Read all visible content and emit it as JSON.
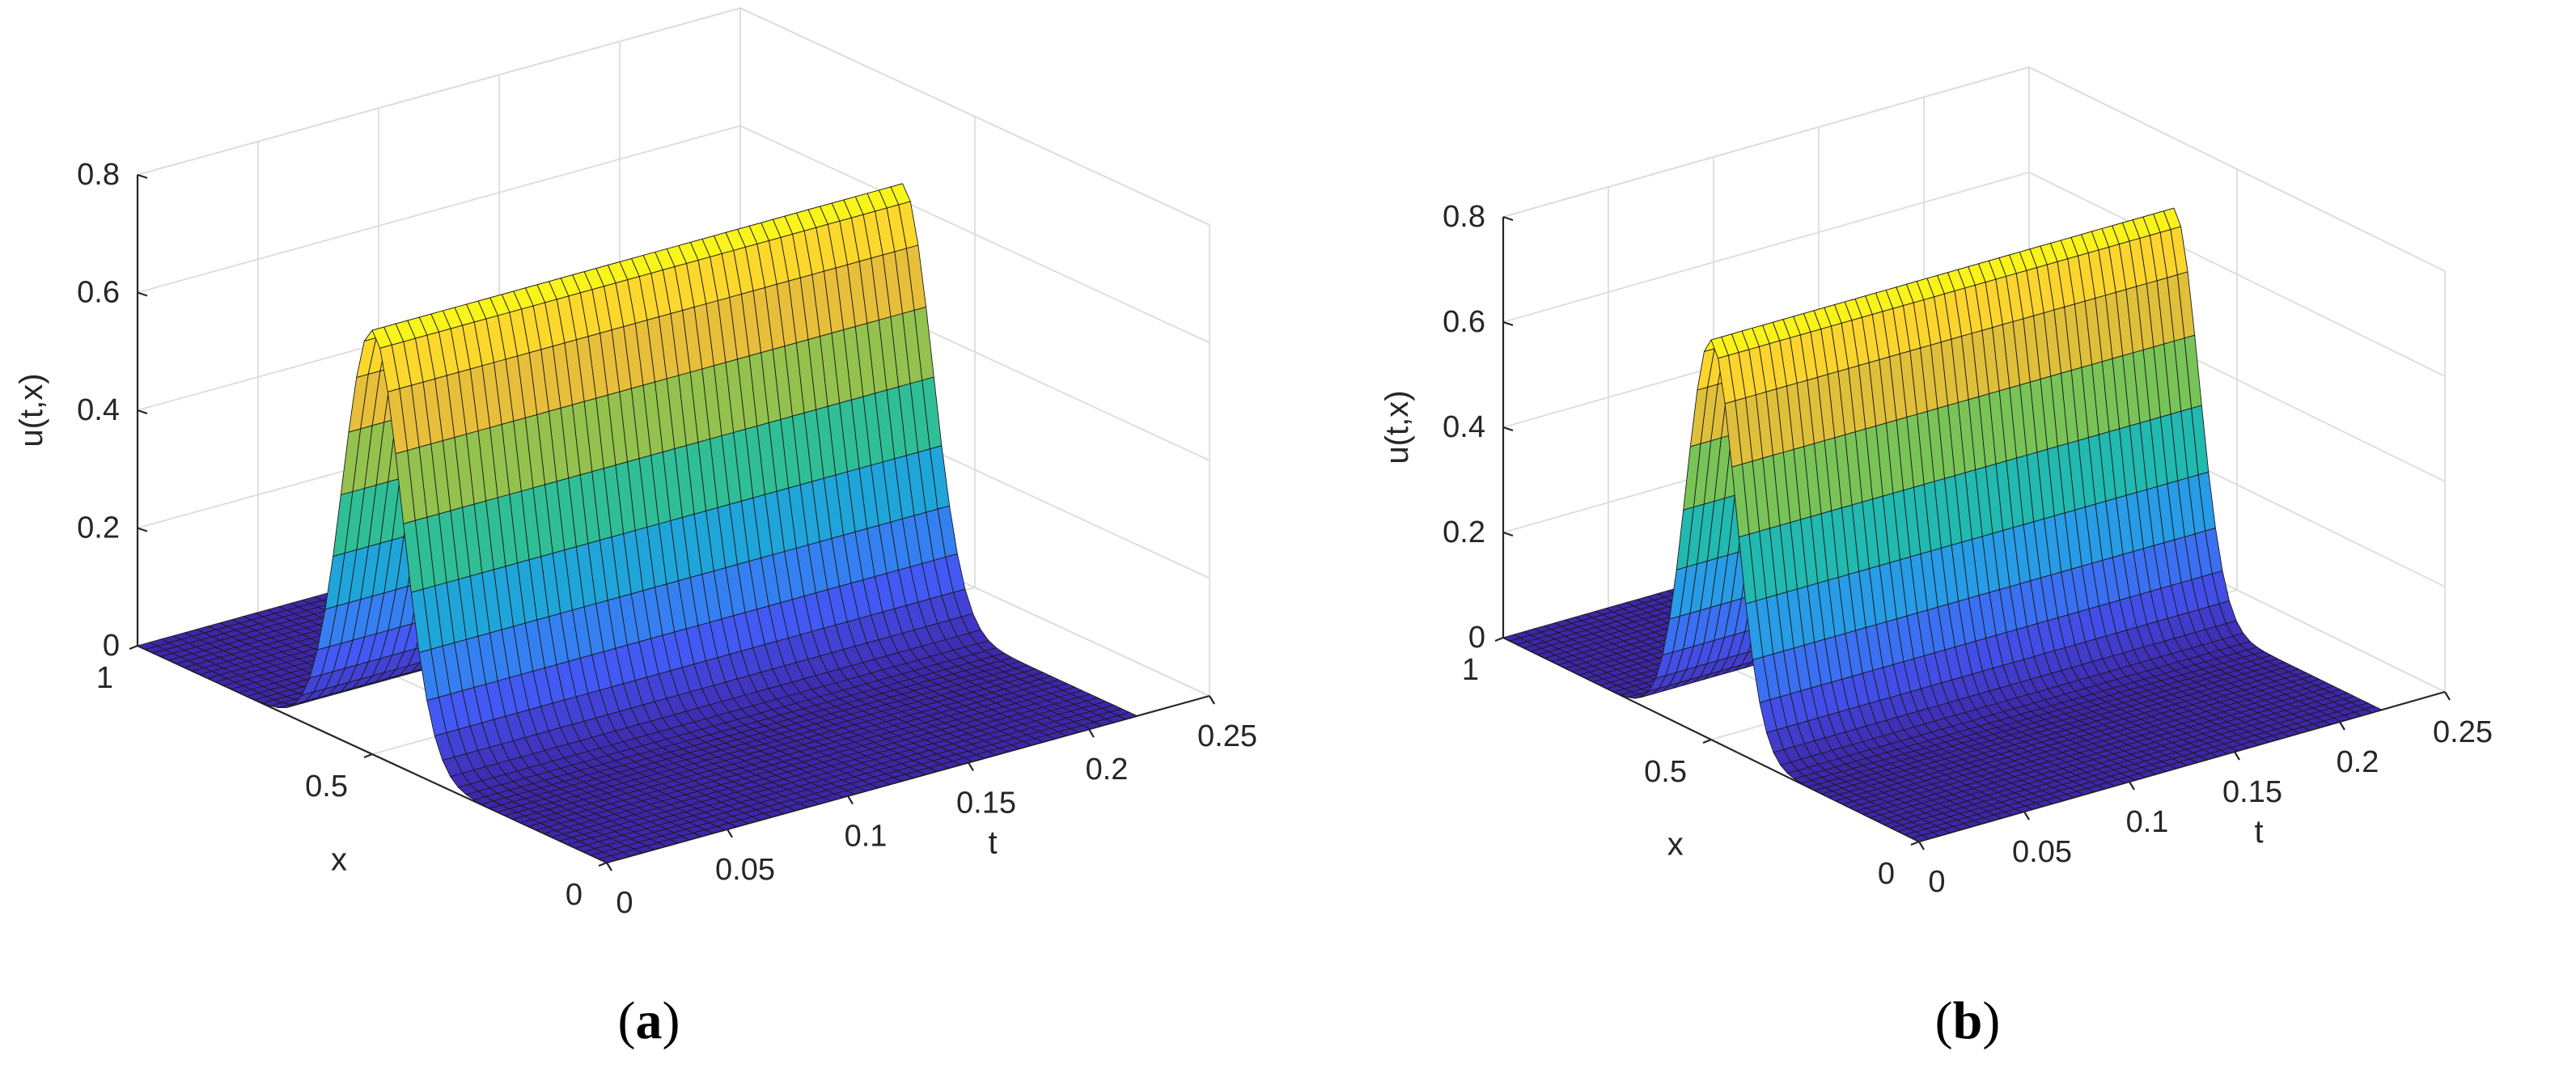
{
  "chart_data": [
    {
      "type": "surface",
      "panel_label": "a",
      "xlabel": "t",
      "ylabel": "x",
      "zlabel": "u(t,x)",
      "xlim": [
        0,
        0.25
      ],
      "ylim": [
        0,
        1
      ],
      "zlim": [
        0,
        0.8
      ],
      "xticks": [
        "0",
        "0.05",
        "0.1",
        "0.15",
        "0.2",
        "0.25"
      ],
      "yticks": [
        "0",
        "0.5",
        "1"
      ],
      "zticks": [
        "0",
        "0.2",
        "0.4",
        "0.6",
        "0.8"
      ],
      "grid": true,
      "colormap": [
        "#3e26a8",
        "#4456f4",
        "#2d95ef",
        "#14b5c5",
        "#4cc66a",
        "#c6c03a",
        "#fcbe3c",
        "#f9fb15"
      ],
      "surface": {
        "description_function": "ridge in x centered near 0.5, constant along t",
        "t_range": [
          0,
          0.22
        ],
        "x_center": 0.5,
        "width": 0.09,
        "peak": 0.72,
        "t_samples": 45,
        "x_samples": 60
      }
    },
    {
      "type": "surface",
      "panel_label": "b",
      "xlabel": "t",
      "ylabel": "x",
      "zlabel": "u(t,x)",
      "xlim": [
        0,
        0.25
      ],
      "ylim": [
        0,
        1
      ],
      "zlim": [
        0,
        0.8
      ],
      "xticks": [
        "0",
        "0.05",
        "0.1",
        "0.15",
        "0.2",
        "0.25"
      ],
      "yticks": [
        "0",
        "0.5",
        "1"
      ],
      "zticks": [
        "0",
        "0.2",
        "0.4",
        "0.6",
        "0.8"
      ],
      "grid": true,
      "colormap": [
        "#3e26a8",
        "#4456f4",
        "#2d95ef",
        "#14b5c5",
        "#4cc66a",
        "#c6c03a",
        "#fcbe3c",
        "#f9fb15"
      ],
      "surface": {
        "description_function": "ridge in x centered near 0.5, constant along t",
        "t_range": [
          0,
          0.22
        ],
        "x_center": 0.5,
        "width": 0.085,
        "peak": 0.76,
        "t_samples": 45,
        "x_samples": 60
      }
    }
  ]
}
